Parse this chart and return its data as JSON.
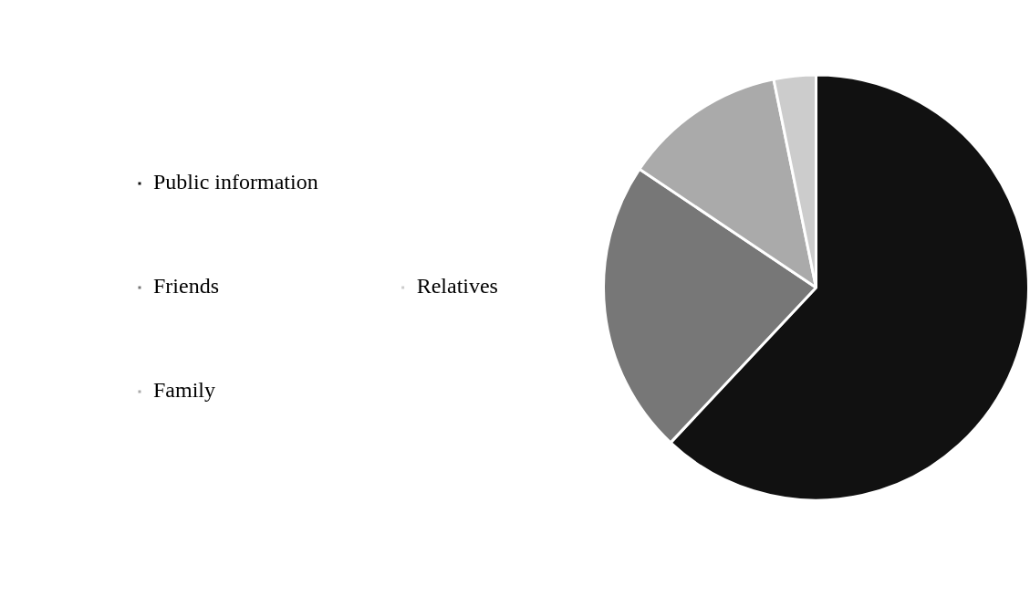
{
  "chart_data": {
    "type": "pie",
    "categories": [
      "Public information",
      "Friends",
      "Family",
      "Relatives"
    ],
    "values": [
      62,
      22.4,
      12.4,
      3.2
    ],
    "colors": [
      "#111111",
      "#777777",
      "#aaaaaa",
      "#cccccc"
    ],
    "legend": "left"
  }
}
